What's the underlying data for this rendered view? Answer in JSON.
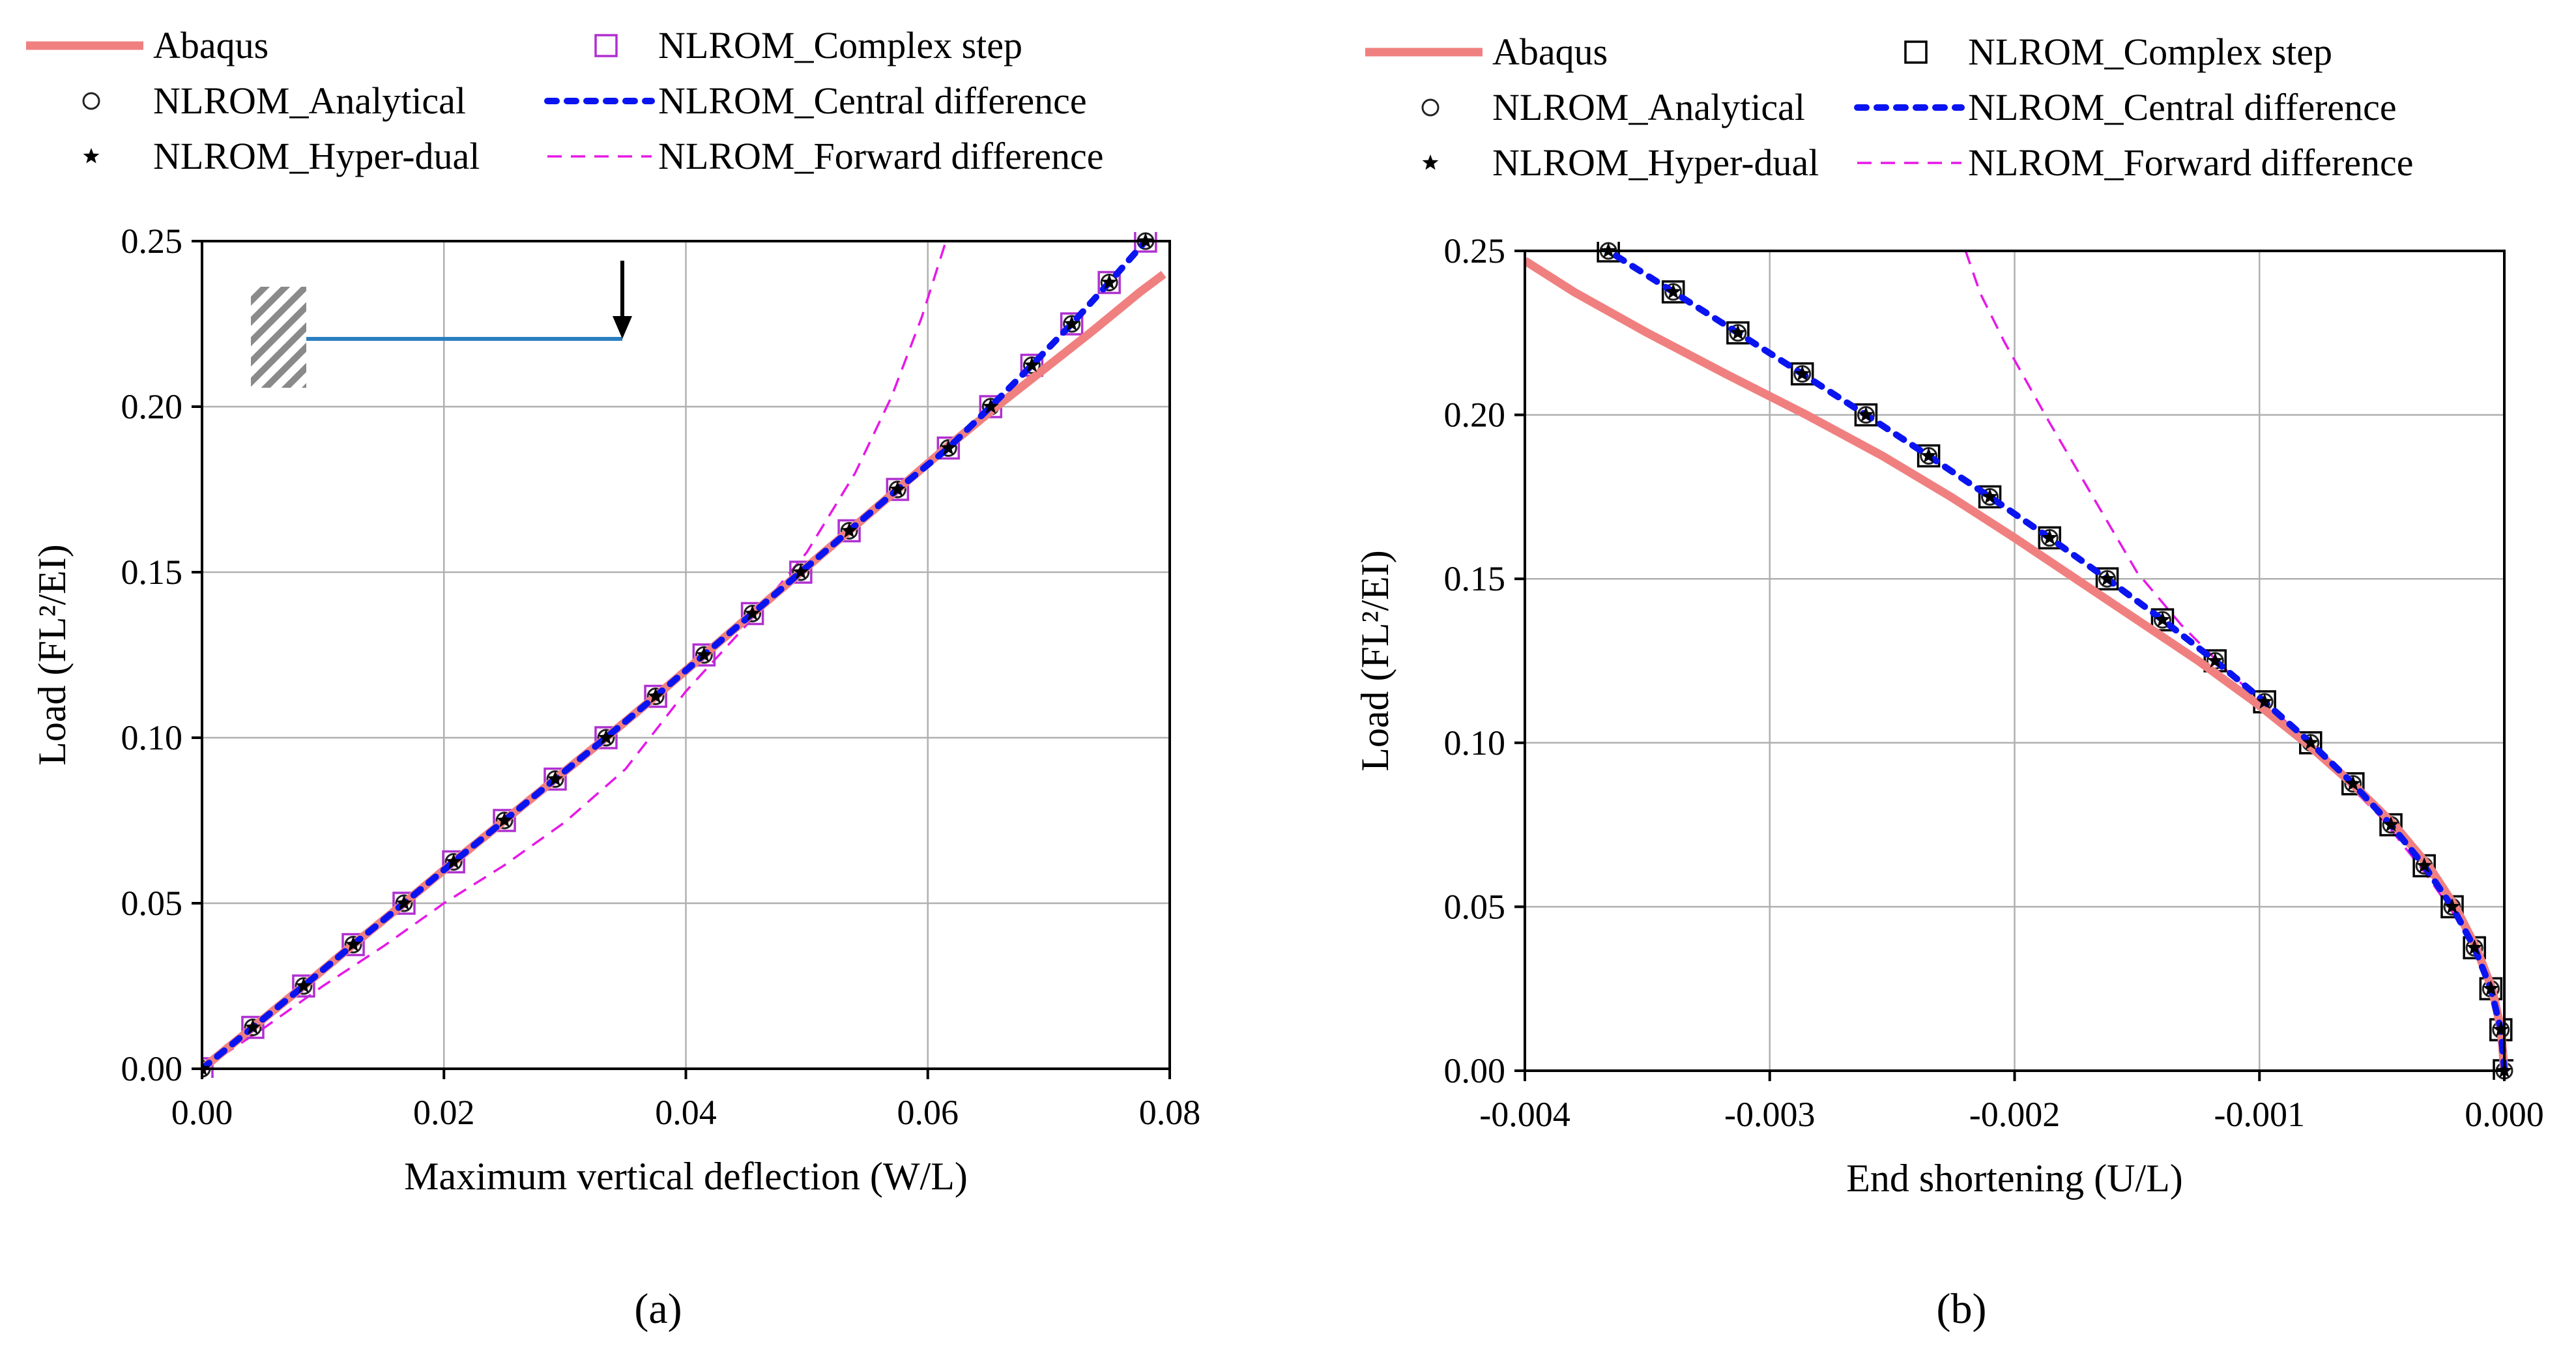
{
  "chart_data": [
    {
      "type": "line",
      "panel": "(a)",
      "xlabel": "Maximum vertical deflection (W/L)",
      "ylabel": "Load (FL²/EI)",
      "xlim": [
        0,
        0.08
      ],
      "ylim": [
        0,
        0.25
      ],
      "xticks": [
        0,
        0.02,
        0.04,
        0.06,
        0.08
      ],
      "xtick_labels": [
        "0.00",
        "0.02",
        "0.04",
        "0.06",
        "0.08"
      ],
      "yticks": [
        0,
        0.05,
        0.1,
        0.15,
        0.2,
        0.25
      ],
      "ytick_labels": [
        "0.00",
        "0.05",
        "0.10",
        "0.15",
        "0.20",
        "0.25"
      ],
      "grid": true,
      "legend_position": "top",
      "legend": [
        "Abaqus",
        "NLROM_Analytical",
        "NLROM_Hyper-dual",
        "NLROM_Complex step",
        "NLROM_Central difference",
        "NLROM_Forward difference"
      ],
      "inset": "cantilever beam with tip load",
      "series": [
        {
          "name": "Abaqus",
          "style": "solid-thick",
          "color": "#f08080",
          "x": [
            0,
            0.0042,
            0.0084,
            0.0125,
            0.0167,
            0.0208,
            0.025,
            0.0292,
            0.0334,
            0.0375,
            0.0415,
            0.0455,
            0.0495,
            0.0535,
            0.0575,
            0.0615,
            0.0655,
            0.0695,
            0.0735,
            0.0775,
            0.0795
          ],
          "y": [
            0,
            0.0125,
            0.025,
            0.0375,
            0.05,
            0.0625,
            0.075,
            0.0875,
            0.1,
            0.1125,
            0.125,
            0.1375,
            0.15,
            0.1625,
            0.175,
            0.1875,
            0.1995,
            0.211,
            0.2225,
            0.2345,
            0.24
          ]
        },
        {
          "name": "NLROM_Central difference",
          "style": "dotted-blue",
          "color": "#0a14f0",
          "x": [
            0,
            0.0042,
            0.0084,
            0.0125,
            0.0167,
            0.0208,
            0.025,
            0.0292,
            0.0334,
            0.0375,
            0.0415,
            0.0455,
            0.0495,
            0.0535,
            0.0575,
            0.0617,
            0.0652,
            0.0686,
            0.0719,
            0.075,
            0.078
          ],
          "y": [
            0,
            0.0125,
            0.025,
            0.0375,
            0.05,
            0.0625,
            0.075,
            0.0875,
            0.1,
            0.1125,
            0.125,
            0.1375,
            0.15,
            0.1625,
            0.175,
            0.1875,
            0.2,
            0.2125,
            0.225,
            0.2375,
            0.25
          ]
        },
        {
          "name": "NLROM_Forward difference",
          "style": "dashed",
          "color": "#e619e6",
          "x": [
            0,
            0.005,
            0.01,
            0.015,
            0.02,
            0.025,
            0.03,
            0.035,
            0.04,
            0.045,
            0.05,
            0.054,
            0.057,
            0.0595,
            0.0615
          ],
          "y": [
            0,
            0.012,
            0.025,
            0.037,
            0.05,
            0.0615,
            0.0745,
            0.0905,
            0.114,
            0.134,
            0.156,
            0.18,
            0.203,
            0.227,
            0.25
          ]
        },
        {
          "name": "NLROM_Analytical",
          "style": "marker-circle",
          "x": [
            0,
            0.0042,
            0.0084,
            0.0125,
            0.0167,
            0.0208,
            0.025,
            0.0292,
            0.0334,
            0.0375,
            0.0415,
            0.0455,
            0.0495,
            0.0535,
            0.0575,
            0.0617,
            0.0652,
            0.0686,
            0.0719,
            0.075,
            0.078
          ],
          "y": [
            0,
            0.0125,
            0.025,
            0.0375,
            0.05,
            0.0625,
            0.075,
            0.0875,
            0.1,
            0.1125,
            0.125,
            0.1375,
            0.15,
            0.1625,
            0.175,
            0.1875,
            0.2,
            0.2125,
            0.225,
            0.2375,
            0.25
          ]
        },
        {
          "name": "NLROM_Hyper-dual",
          "style": "marker-star",
          "x": [
            0,
            0.0042,
            0.0084,
            0.0125,
            0.0167,
            0.0208,
            0.025,
            0.0292,
            0.0334,
            0.0375,
            0.0415,
            0.0455,
            0.0495,
            0.0535,
            0.0575,
            0.0617,
            0.0652,
            0.0686,
            0.0719,
            0.075,
            0.078
          ],
          "y": [
            0,
            0.0125,
            0.025,
            0.0375,
            0.05,
            0.0625,
            0.075,
            0.0875,
            0.1,
            0.1125,
            0.125,
            0.1375,
            0.15,
            0.1625,
            0.175,
            0.1875,
            0.2,
            0.2125,
            0.225,
            0.2375,
            0.25
          ]
        },
        {
          "name": "NLROM_Complex step",
          "style": "marker-square",
          "color": "#b030d0",
          "x": [
            0,
            0.0042,
            0.0084,
            0.0125,
            0.0167,
            0.0208,
            0.025,
            0.0292,
            0.0334,
            0.0375,
            0.0415,
            0.0455,
            0.0495,
            0.0535,
            0.0575,
            0.0617,
            0.0652,
            0.0686,
            0.0719,
            0.075,
            0.078
          ],
          "y": [
            0,
            0.0125,
            0.025,
            0.0375,
            0.05,
            0.0625,
            0.075,
            0.0875,
            0.1,
            0.1125,
            0.125,
            0.1375,
            0.15,
            0.1625,
            0.175,
            0.1875,
            0.2,
            0.2125,
            0.225,
            0.2375,
            0.25
          ]
        }
      ]
    },
    {
      "type": "line",
      "panel": "(b)",
      "xlabel": "End shortening (U/L)",
      "ylabel": "Load (FL²/EI)",
      "xlim": [
        -0.004,
        0
      ],
      "ylim": [
        0,
        0.25
      ],
      "xticks": [
        -0.004,
        -0.003,
        -0.002,
        -0.001,
        0
      ],
      "xtick_labels": [
        "-0.004",
        "-0.003",
        "-0.002",
        "-0.001",
        "0.000"
      ],
      "yticks": [
        0,
        0.05,
        0.1,
        0.15,
        0.2,
        0.25
      ],
      "ytick_labels": [
        "0.00",
        "0.05",
        "0.10",
        "0.15",
        "0.20",
        "0.25"
      ],
      "grid": true,
      "legend_position": "top",
      "legend": [
        "Abaqus",
        "NLROM_Analytical",
        "NLROM_Hyper-dual",
        "NLROM_Complex step",
        "NLROM_Central difference",
        "NLROM_Forward difference"
      ],
      "series": [
        {
          "name": "Abaqus",
          "style": "solid-thick",
          "color": "#f08080",
          "x": [
            0,
            -1.3e-05,
            -5e-05,
            -0.000115,
            -0.0002,
            -0.00031,
            -0.00045,
            -0.00062,
            -0.00081,
            -0.00102,
            -0.00125,
            -0.0015,
            -0.00175,
            -0.002,
            -0.00226,
            -0.00254,
            -0.00285,
            -0.00318,
            -0.0035,
            -0.0038,
            -0.004
          ],
          "y": [
            0,
            0.0125,
            0.025,
            0.0375,
            0.05,
            0.0625,
            0.075,
            0.0875,
            0.1,
            0.1125,
            0.125,
            0.1375,
            0.15,
            0.1625,
            0.175,
            0.1875,
            0.2,
            0.2125,
            0.225,
            0.2375,
            0.247
          ]
        },
        {
          "name": "NLROM_Central difference",
          "style": "dotted-blue",
          "color": "#0a14f0",
          "x": [
            0,
            -1.4e-05,
            -5.5e-05,
            -0.000122,
            -0.000213,
            -0.000327,
            -0.000463,
            -0.000618,
            -0.000791,
            -0.000979,
            -0.001181,
            -0.001396,
            -0.001622,
            -0.001857,
            -0.002101,
            -0.002351,
            -0.002607,
            -0.002867,
            -0.00313,
            -0.003394,
            -0.003659
          ],
          "y": [
            0,
            0.0125,
            0.025,
            0.0375,
            0.05,
            0.0625,
            0.075,
            0.0875,
            0.1,
            0.1125,
            0.125,
            0.1375,
            0.15,
            0.1625,
            0.175,
            0.1875,
            0.2,
            0.2125,
            0.225,
            0.2375,
            0.25
          ]
        },
        {
          "name": "NLROM_Forward difference",
          "style": "dashed",
          "color": "#e619e6",
          "x": [
            0,
            -2e-05,
            -8e-05,
            -0.00018,
            -0.00032,
            -0.0005,
            -0.0007,
            -0.0009,
            -0.00112,
            -0.00132,
            -0.0015,
            -0.00168,
            -0.00186,
            -0.00204,
            -0.00214,
            -0.0022
          ],
          "y": [
            0,
            0.015,
            0.03,
            0.045,
            0.06,
            0.077,
            0.092,
            0.107,
            0.121,
            0.136,
            0.152,
            0.175,
            0.198,
            0.222,
            0.237,
            0.25
          ]
        },
        {
          "name": "NLROM_Analytical",
          "style": "marker-circle",
          "x": [
            0,
            -1.4e-05,
            -5.5e-05,
            -0.000122,
            -0.000213,
            -0.000327,
            -0.000463,
            -0.000618,
            -0.000791,
            -0.000979,
            -0.001181,
            -0.001396,
            -0.001622,
            -0.001857,
            -0.002101,
            -0.002351,
            -0.002607,
            -0.002867,
            -0.00313,
            -0.003394,
            -0.003659
          ],
          "y": [
            0,
            0.0125,
            0.025,
            0.0375,
            0.05,
            0.0625,
            0.075,
            0.0875,
            0.1,
            0.1125,
            0.125,
            0.1375,
            0.15,
            0.1625,
            0.175,
            0.1875,
            0.2,
            0.2125,
            0.225,
            0.2375,
            0.25
          ]
        },
        {
          "name": "NLROM_Hyper-dual",
          "style": "marker-star",
          "x": [
            0,
            -1.4e-05,
            -5.5e-05,
            -0.000122,
            -0.000213,
            -0.000327,
            -0.000463,
            -0.000618,
            -0.000791,
            -0.000979,
            -0.001181,
            -0.001396,
            -0.001622,
            -0.001857,
            -0.002101,
            -0.002351,
            -0.002607,
            -0.002867,
            -0.00313,
            -0.003394,
            -0.003659
          ],
          "y": [
            0,
            0.0125,
            0.025,
            0.0375,
            0.05,
            0.0625,
            0.075,
            0.0875,
            0.1,
            0.1125,
            0.125,
            0.1375,
            0.15,
            0.1625,
            0.175,
            0.1875,
            0.2,
            0.2125,
            0.225,
            0.2375,
            0.25
          ]
        },
        {
          "name": "NLROM_Complex step",
          "style": "marker-square",
          "color": "#000000",
          "x": [
            0,
            -1.4e-05,
            -5.5e-05,
            -0.000122,
            -0.000213,
            -0.000327,
            -0.000463,
            -0.000618,
            -0.000791,
            -0.000979,
            -0.001181,
            -0.001396,
            -0.001622,
            -0.001857,
            -0.002101,
            -0.002351,
            -0.002607,
            -0.002867,
            -0.00313,
            -0.003394,
            -0.003659
          ],
          "y": [
            0,
            0.0125,
            0.025,
            0.0375,
            0.05,
            0.0625,
            0.075,
            0.0875,
            0.1,
            0.1125,
            0.125,
            0.1375,
            0.15,
            0.1625,
            0.175,
            0.1875,
            0.2,
            0.2125,
            0.225,
            0.2375,
            0.25
          ]
        }
      ]
    }
  ]
}
